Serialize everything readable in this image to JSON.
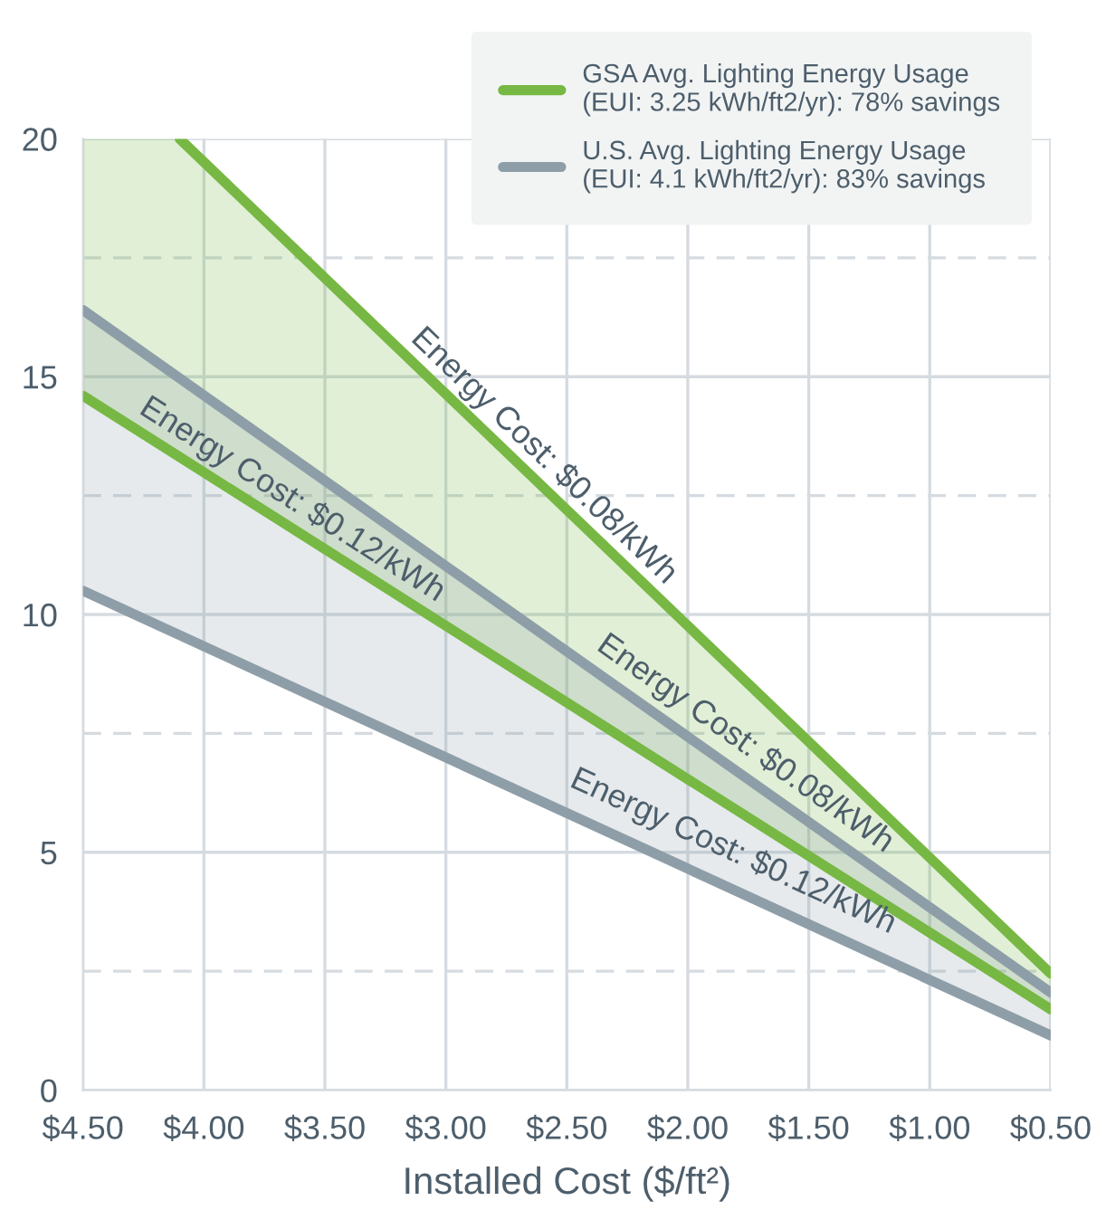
{
  "chart_data": {
    "type": "line",
    "xlabel": "Installed Cost ($/ft²)",
    "xlim": [
      4.5,
      0.5
    ],
    "xticks": [
      {
        "value": 4.5,
        "label": "$4.50"
      },
      {
        "value": 4.0,
        "label": "$4.00"
      },
      {
        "value": 3.5,
        "label": "$3.50"
      },
      {
        "value": 3.0,
        "label": "$3.00"
      },
      {
        "value": 2.5,
        "label": "$2.50"
      },
      {
        "value": 2.0,
        "label": "$2.00"
      },
      {
        "value": 1.5,
        "label": "$1.50"
      },
      {
        "value": 1.0,
        "label": "$1.00"
      },
      {
        "value": 0.5,
        "label": "$0.50"
      }
    ],
    "ylim": [
      0,
      20
    ],
    "yticks": [
      0,
      {
        "value": 2.5,
        "label": null
      },
      5,
      {
        "value": 7.5,
        "label": null
      },
      10,
      {
        "value": 12.5,
        "label": null
      },
      15,
      {
        "value": 17.5,
        "label": null
      },
      20
    ],
    "grid": true,
    "legend": "top right",
    "series": [
      {
        "name": "GSA Avg. Lighting Energy Usage\n(EUI: 3.25 kWh/ft2/yr): 78% savings",
        "color": "#76b843",
        "x": [
          4.1,
          0.5
        ],
        "values": [
          20,
          2.45
        ]
      },
      {
        "color": "#76b843",
        "x": [
          4.5,
          4.1,
          0.5
        ],
        "values": [
          14.6,
          13.31,
          1.7
        ],
        "lower": [
          14.6,
          13.31,
          1.7
        ],
        "upper": [
          20,
          20,
          2.45
        ]
      },
      {
        "name": "U.S. Avg. Lighting Energy Usage\n(EUI: 4.1 kWh/ft2/yr): 83% savings",
        "color": "#8e9ea8",
        "x": [
          4.5,
          0.5
        ],
        "values": [
          16.4,
          2.05
        ]
      },
      {
        "color": "#8e9ea8",
        "x": [
          4.5,
          0.5
        ],
        "values": [
          10.5,
          1.15
        ],
        "lower": [
          10.5,
          1.15
        ],
        "upper": [
          16.4,
          2.05
        ]
      }
    ],
    "annotations": [
      {
        "text": "Energy Cost: $0.08/kWh",
        "x": 2.64,
        "y": 12.88
      },
      {
        "text": "Energy Cost: $0.12/kWh",
        "x": 3.67,
        "y": 11.92
      },
      {
        "text": "Energy Cost: $0.08/kWh",
        "x": 1.8,
        "y": 6.8
      },
      {
        "text": "Energy Cost: $0.12/kWh",
        "x": 1.84,
        "y": 4.5
      }
    ]
  }
}
